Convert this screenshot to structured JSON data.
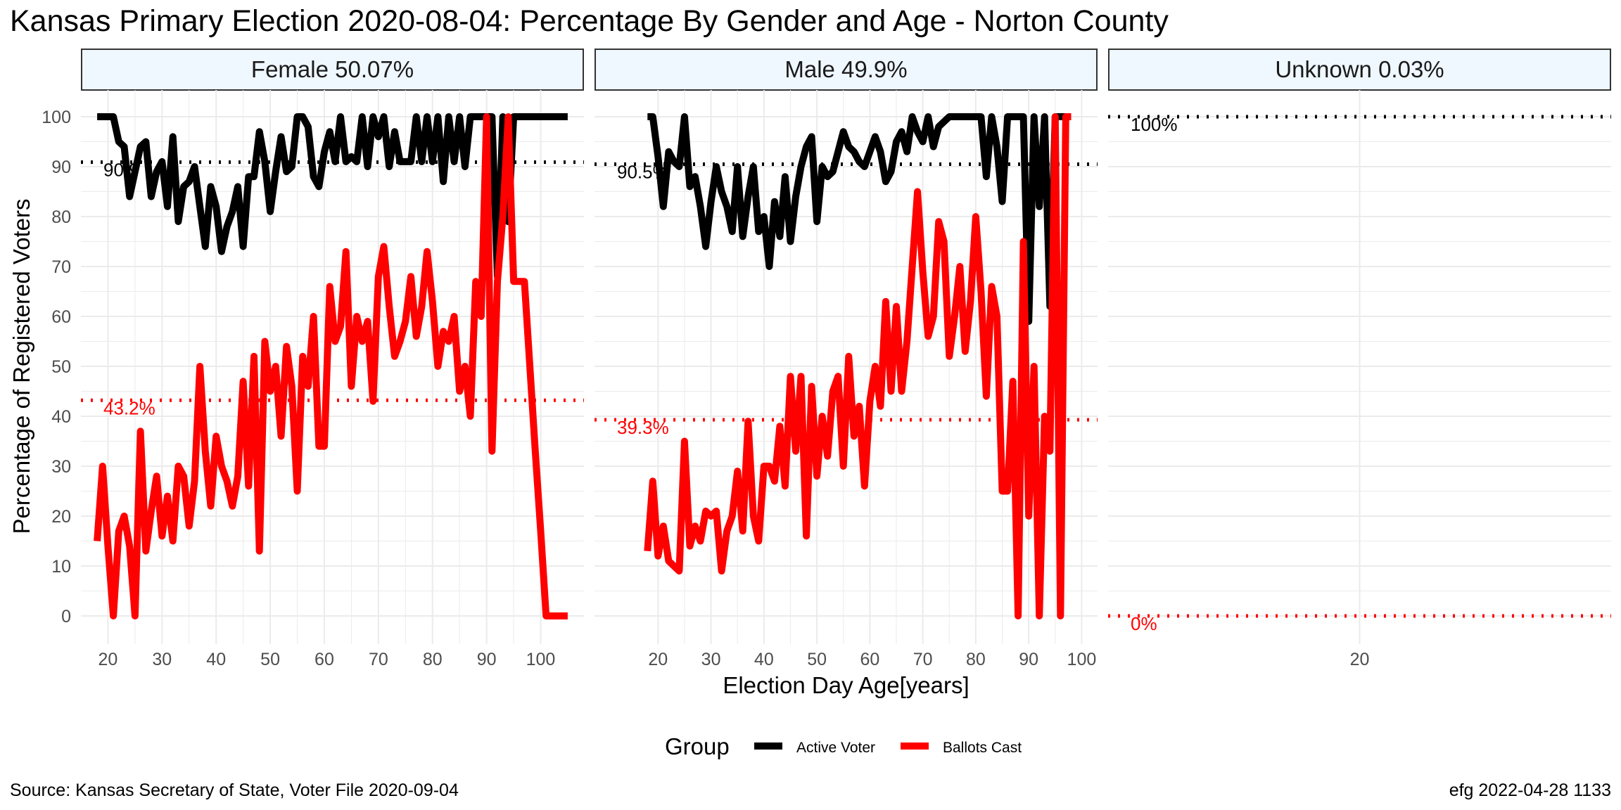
{
  "title": "Kansas Primary Election 2020-08-04:  Percentage By Gender and Age - Norton County",
  "source": "Source:  Kansas Secretary of State, Voter File  2020-09-04",
  "stamp": "efg 2022-04-28 1133",
  "colors": {
    "active": "#000000",
    "ballots": "#ff0000",
    "strip_fill": "#eff7ff",
    "grid": "#ebebeb",
    "axis_text": "#4d4d4d"
  },
  "chart_data": {
    "type": "line",
    "xlabel": "Election Day Age[years]",
    "ylabel": "Percentage of Registered Voters",
    "ylim": [
      0,
      100
    ],
    "yticks": [
      "0",
      "10",
      "20",
      "30",
      "40",
      "50",
      "60",
      "70",
      "80",
      "90",
      "100"
    ],
    "legend": {
      "title": "Group",
      "position": "bottom",
      "items": [
        {
          "label": "Active Voter",
          "color": "#000000"
        },
        {
          "label": "Ballots Cast",
          "color": "#ff0000"
        }
      ]
    },
    "panels": [
      {
        "strip": "Female 50.07%",
        "xlim": [
          15,
          108
        ],
        "xticks": [
          "20",
          "30",
          "40",
          "50",
          "60",
          "70",
          "80",
          "90",
          "100"
        ],
        "ref_active": {
          "value": 90.9,
          "label": "90.9"
        },
        "ref_ballots": {
          "value": 43.2,
          "label": "43.2%"
        },
        "series": [
          {
            "name": "Active Voter",
            "x": [
              18,
              19,
              20,
              21,
              22,
              23,
              24,
              25,
              26,
              27,
              28,
              29,
              30,
              31,
              32,
              33,
              34,
              35,
              36,
              37,
              38,
              39,
              40,
              41,
              42,
              43,
              44,
              45,
              46,
              47,
              48,
              49,
              50,
              51,
              52,
              53,
              54,
              55,
              56,
              57,
              58,
              59,
              60,
              61,
              62,
              63,
              64,
              65,
              66,
              67,
              68,
              69,
              70,
              71,
              72,
              73,
              74,
              75,
              76,
              77,
              78,
              79,
              80,
              81,
              82,
              83,
              84,
              85,
              86,
              87,
              88,
              89,
              90,
              91,
              92,
              93,
              94,
              95,
              96,
              97,
              98,
              99,
              100,
              101,
              102,
              103,
              104,
              105
            ],
            "values": [
              100,
              100,
              100,
              100,
              95,
              94,
              84,
              89,
              94,
              95,
              84,
              89,
              91,
              82,
              96,
              79,
              86,
              87,
              90,
              82,
              74,
              86,
              82,
              73,
              78,
              81,
              86,
              74,
              88,
              88,
              97,
              91,
              81,
              89,
              96,
              89,
              90,
              100,
              100,
              98,
              88,
              86,
              93,
              97,
              91,
              100,
              91,
              92,
              91,
              100,
              90,
              100,
              96,
              100,
              90,
              97,
              91,
              91,
              91,
              100,
              91,
              100,
              91,
              100,
              87,
              100,
              91,
              100,
              90,
              100,
              100,
              100,
              100,
              100,
              68,
              100,
              79,
              100,
              100,
              100,
              100,
              100,
              100,
              100,
              100,
              100,
              100,
              100
            ]
          },
          {
            "name": "Ballots Cast",
            "x": [
              18,
              19,
              20,
              21,
              22,
              23,
              24,
              25,
              26,
              27,
              28,
              29,
              30,
              31,
              32,
              33,
              34,
              35,
              36,
              37,
              38,
              39,
              40,
              41,
              42,
              43,
              44,
              45,
              46,
              47,
              48,
              49,
              50,
              51,
              52,
              53,
              54,
              55,
              56,
              57,
              58,
              59,
              60,
              61,
              62,
              63,
              64,
              65,
              66,
              67,
              68,
              69,
              70,
              71,
              72,
              73,
              74,
              75,
              76,
              77,
              78,
              79,
              80,
              81,
              82,
              83,
              84,
              85,
              86,
              87,
              88,
              89,
              90,
              91,
              92,
              93,
              94,
              95,
              96,
              97,
              98,
              99,
              100,
              101,
              102,
              103,
              104,
              105
            ],
            "values": [
              15,
              30,
              14,
              0,
              17,
              20,
              14,
              0,
              37,
              13,
              21,
              28,
              16,
              24,
              15,
              30,
              28,
              18,
              27,
              50,
              33,
              22,
              36,
              30,
              27,
              22,
              28,
              47,
              26,
              52,
              13,
              55,
              45,
              50,
              36,
              54,
              46,
              25,
              52,
              46,
              60,
              34,
              34,
              66,
              55,
              58,
              73,
              46,
              60,
              55,
              59,
              43,
              68,
              74,
              62,
              52,
              55,
              59,
              68,
              56,
              62,
              73,
              63,
              50,
              57,
              55,
              60,
              45,
              50,
              40,
              67,
              60,
              100,
              33,
              67,
              80,
              100,
              67,
              67,
              67,
              50,
              33,
              17,
              0,
              0,
              0,
              0,
              0
            ]
          }
        ]
      },
      {
        "strip": "Male 49.9%",
        "xlim": [
          8,
          103
        ],
        "xticks": [
          "20",
          "30",
          "40",
          "50",
          "60",
          "70",
          "80",
          "90",
          "100"
        ],
        "ref_active": {
          "value": 90.5,
          "label": "90.5%"
        },
        "ref_ballots": {
          "value": 39.3,
          "label": "39.3%"
        },
        "series": [
          {
            "name": "Active Voter",
            "x": [
              18,
              19,
              20,
              21,
              22,
              23,
              24,
              25,
              26,
              27,
              28,
              29,
              30,
              31,
              32,
              33,
              34,
              35,
              36,
              37,
              38,
              39,
              40,
              41,
              42,
              43,
              44,
              45,
              46,
              47,
              48,
              49,
              50,
              51,
              52,
              53,
              54,
              55,
              56,
              57,
              58,
              59,
              60,
              61,
              62,
              63,
              64,
              65,
              66,
              67,
              68,
              69,
              70,
              71,
              72,
              73,
              74,
              75,
              76,
              77,
              78,
              79,
              80,
              81,
              82,
              83,
              84,
              85,
              86,
              87,
              88,
              89,
              90,
              91,
              92,
              93,
              94,
              95,
              96,
              97,
              98
            ],
            "values": [
              100,
              100,
              92,
              82,
              93,
              91,
              90,
              100,
              86,
              88,
              82,
              74,
              83,
              90,
              85,
              82,
              77,
              90,
              76,
              84,
              90,
              77,
              80,
              70,
              83,
              76,
              88,
              75,
              84,
              90,
              94,
              96,
              79,
              90,
              88,
              89,
              93,
              97,
              94,
              93,
              91,
              90,
              93,
              96,
              93,
              87,
              89,
              95,
              97,
              93,
              100,
              97,
              95,
              100,
              94,
              98,
              99,
              100,
              100,
              100,
              100,
              100,
              100,
              100,
              88,
              100,
              94,
              83,
              100,
              100,
              100,
              100,
              59,
              100,
              82,
              100,
              62,
              100,
              100,
              100,
              100
            ]
          },
          {
            "name": "Ballots Cast",
            "x": [
              18,
              19,
              20,
              21,
              22,
              23,
              24,
              25,
              26,
              27,
              28,
              29,
              30,
              31,
              32,
              33,
              34,
              35,
              36,
              37,
              38,
              39,
              40,
              41,
              42,
              43,
              44,
              45,
              46,
              47,
              48,
              49,
              50,
              51,
              52,
              53,
              54,
              55,
              56,
              57,
              58,
              59,
              60,
              61,
              62,
              63,
              64,
              65,
              66,
              67,
              68,
              69,
              70,
              71,
              72,
              73,
              74,
              75,
              76,
              77,
              78,
              79,
              80,
              81,
              82,
              83,
              84,
              85,
              86,
              87,
              88,
              89,
              90,
              91,
              92,
              93,
              94,
              95,
              96,
              97,
              98
            ],
            "values": [
              13,
              27,
              12,
              18,
              11,
              10,
              9,
              35,
              14,
              18,
              15,
              21,
              20,
              21,
              9,
              17,
              20,
              29,
              17,
              39,
              20,
              15,
              30,
              30,
              27,
              38,
              26,
              48,
              33,
              48,
              16,
              46,
              28,
              40,
              32,
              45,
              48,
              30,
              52,
              36,
              42,
              26,
              43,
              50,
              42,
              63,
              45,
              62,
              45,
              55,
              70,
              85,
              69,
              56,
              60,
              79,
              75,
              52,
              60,
              70,
              53,
              63,
              80,
              65,
              44,
              66,
              60,
              25,
              25,
              47,
              0,
              75,
              20,
              50,
              0,
              40,
              33,
              100,
              0,
              100,
              100
            ]
          }
        ]
      },
      {
        "strip": "Unknown 0.03%",
        "xlim": [
          18.8,
          21.2
        ],
        "xticks": [
          "20"
        ],
        "ref_active": {
          "value": 100,
          "label": "100%"
        },
        "ref_ballots": {
          "value": 0,
          "label": "0%"
        },
        "series": [
          {
            "name": "Active Voter",
            "x": [
              20
            ],
            "values": [
              100
            ]
          },
          {
            "name": "Ballots Cast",
            "x": [
              20
            ],
            "values": [
              0
            ]
          }
        ]
      }
    ]
  }
}
